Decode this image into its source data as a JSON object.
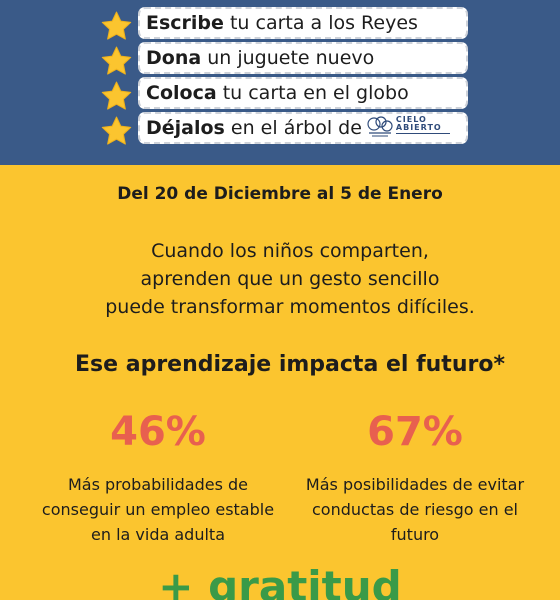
{
  "steps": [
    {
      "bold": "Escribe",
      "rest": " tu carta a los Reyes"
    },
    {
      "bold": "Dona",
      "rest": " un juguete nuevo"
    },
    {
      "bold": "Coloca",
      "rest": " tu carta en el globo"
    },
    {
      "bold": "Déjalos",
      "rest": " en el árbol de"
    }
  ],
  "logo": {
    "line1": "CIELO",
    "line2": "ABIERTO"
  },
  "dates": "Del 20 de Diciembre al 5 de Enero",
  "body_lines": [
    "Cuando los niños comparten,",
    "aprenden que un gesto sencillo",
    "puede transformar momentos difíciles."
  ],
  "impact_title": "Ese aprendizaje impacta el futuro*",
  "stats": [
    {
      "value": "46%",
      "desc_lines": [
        "Más probabilidades de",
        "conseguir un empleo estable",
        "en la vida adulta"
      ]
    },
    {
      "value": "67%",
      "desc_lines": [
        "Más posibilidades de evitar",
        "conductas de riesgo en el",
        "futuro"
      ]
    }
  ],
  "closing": "+ gratitud",
  "colors": {
    "header_bg": "#3a5a88",
    "page_bg": "#fbc52f",
    "star": "#fbc52f",
    "stat_accent": "#e8604f",
    "closing_green": "#3a9a48"
  }
}
